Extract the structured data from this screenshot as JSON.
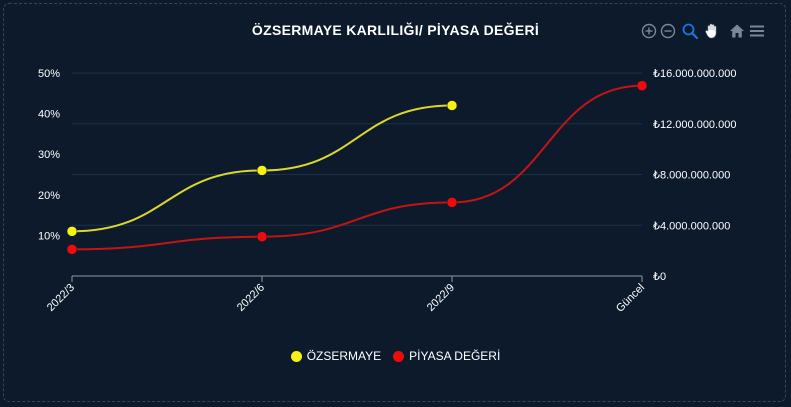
{
  "chart_data": {
    "type": "line",
    "title": "ÖZSERMAYE KARLILIĞI/ PİYASA DEĞERİ",
    "categories": [
      "2022/3",
      "2022/6",
      "2022/9",
      "Güncel"
    ],
    "series": [
      {
        "name": "ÖZSERMAYE",
        "axis": "left",
        "color": "#f7f014",
        "line_color": "#dcd72a",
        "values": [
          11,
          26,
          42,
          null
        ],
        "unit": "%"
      },
      {
        "name": "PİYASA DEĞERİ",
        "axis": "right",
        "color": "#ef0b0b",
        "line_color": "#c41414",
        "values": [
          2100000000,
          3100000000,
          5800000000,
          15000000000
        ],
        "unit": "₺"
      }
    ],
    "y_left": {
      "ticks": [
        "50%",
        "40%",
        "30%",
        "20%",
        "10%"
      ],
      "tick_values": [
        50,
        40,
        30,
        20,
        10
      ],
      "ylim": [
        0,
        50
      ]
    },
    "y_right": {
      "ticks": [
        "₺16.000.000.000",
        "₺12.000.000.000",
        "₺8.000.000.000",
        "₺4.000.000.000",
        "₺0"
      ],
      "tick_values": [
        16000000000,
        12000000000,
        8000000000,
        4000000000,
        0
      ],
      "ylim": [
        0,
        16000000000
      ]
    },
    "grid": true,
    "legend": "bottom-center"
  },
  "toolbar": {
    "icons": [
      "zoom-in-icon",
      "zoom-out-icon",
      "selection-zoom-icon",
      "pan-hand-icon",
      "reset-home-icon",
      "menu-icon"
    ]
  },
  "colors": {
    "background": "#0c1a2c",
    "grid": "#1f3046",
    "text": "#ffffff",
    "toolbar_icon": "#7b8797",
    "toolbar_active": "#1a73e8"
  }
}
